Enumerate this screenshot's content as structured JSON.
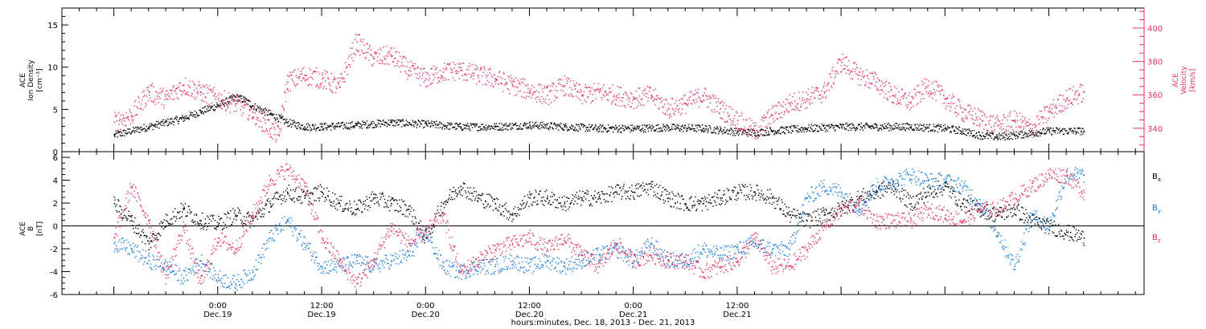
{
  "chart_data": [
    {
      "type": "scatter",
      "panel": "top",
      "ylabel_left": [
        "ACE",
        "Ion Density",
        "[cm⁻³]"
      ],
      "ylabel_right": [
        "ACE",
        "Velocity",
        "[km/s]"
      ],
      "left_ylim": [
        0,
        17
      ],
      "left_yticks": [
        "0",
        "5",
        "10",
        "15"
      ],
      "right_ylim": [
        326,
        412
      ],
      "right_yticks": [
        "340",
        "360",
        "380",
        "400"
      ],
      "series": [
        {
          "name": "Ion Density",
          "axis": "left",
          "color": "#000000",
          "x": [
            -12,
            -8,
            -4,
            -2,
            0,
            2,
            3,
            4,
            6,
            8,
            10,
            12,
            16,
            20,
            24,
            28,
            32,
            36,
            40,
            44,
            48,
            52,
            56,
            58,
            60,
            62,
            64,
            68,
            72,
            76,
            80,
            84,
            86,
            88,
            90,
            92,
            96,
            100
          ],
          "y": [
            2.0,
            3.0,
            4.0,
            4.8,
            5.5,
            6.5,
            6.2,
            5.5,
            4.5,
            3.5,
            3.0,
            3.0,
            3.2,
            3.5,
            3.3,
            3.0,
            3.0,
            3.2,
            3.0,
            2.8,
            2.8,
            2.9,
            2.8,
            2.6,
            2.4,
            2.3,
            2.5,
            2.8,
            3.0,
            3.0,
            3.0,
            2.8,
            2.5,
            2.0,
            1.8,
            2.0,
            2.5,
            2.5
          ]
        },
        {
          "name": "Velocity",
          "axis": "right",
          "color": "#e8325f",
          "x": [
            -12,
            -10,
            -8,
            -6,
            -4,
            -2,
            0,
            2,
            4,
            6,
            7,
            8,
            10,
            12,
            14,
            16,
            18,
            20,
            22,
            24,
            26,
            28,
            30,
            32,
            34,
            36,
            38,
            40,
            42,
            44,
            46,
            48,
            50,
            52,
            54,
            56,
            58,
            60,
            62,
            64,
            66,
            68,
            70,
            72,
            74,
            76,
            78,
            80,
            82,
            84,
            86,
            88,
            90,
            92,
            94,
            96,
            98,
            100
          ],
          "y": [
            344,
            348,
            362,
            358,
            366,
            362,
            358,
            355,
            350,
            340,
            336,
            368,
            372,
            370,
            365,
            392,
            382,
            384,
            375,
            370,
            374,
            375,
            372,
            370,
            366,
            363,
            360,
            366,
            360,
            362,
            360,
            358,
            360,
            352,
            355,
            360,
            352,
            345,
            338,
            348,
            355,
            358,
            362,
            380,
            372,
            368,
            360,
            356,
            366,
            358,
            350,
            346,
            342,
            345,
            340,
            350,
            358,
            362
          ]
        }
      ]
    },
    {
      "type": "scatter",
      "panel": "bottom",
      "ylabel_left": [
        "ACE",
        "B",
        "[nT]"
      ],
      "ylim": [
        -6,
        6.5
      ],
      "yticks": [
        "-6",
        "-4",
        "-2",
        "0",
        "2",
        "4",
        "6"
      ],
      "zero_line": true,
      "series": [
        {
          "name": "Bx",
          "color": "#000000",
          "x": [
            -12,
            -10,
            -8,
            -6,
            -4,
            -2,
            0,
            2,
            4,
            6,
            8,
            10,
            12,
            14,
            16,
            18,
            20,
            22,
            24,
            26,
            28,
            30,
            32,
            34,
            36,
            38,
            40,
            42,
            44,
            46,
            48,
            50,
            52,
            54,
            56,
            58,
            60,
            62,
            64,
            66,
            68,
            70,
            72,
            74,
            76,
            78,
            80,
            82,
            84,
            86,
            88,
            90,
            92,
            94,
            96,
            98,
            100
          ],
          "y": [
            2.0,
            0.5,
            -1.5,
            0.5,
            1.5,
            0.5,
            0.2,
            1.0,
            0.5,
            2.0,
            3.0,
            2.5,
            3.0,
            2.0,
            1.5,
            2.5,
            2.0,
            1.5,
            -1.0,
            2.0,
            3.5,
            2.5,
            2.0,
            1.0,
            2.5,
            2.5,
            2.0,
            2.5,
            2.5,
            3.0,
            3.0,
            3.5,
            2.5,
            2.0,
            2.0,
            2.5,
            3.0,
            3.0,
            2.5,
            1.0,
            0.5,
            1.0,
            1.5,
            2.5,
            3.0,
            3.5,
            2.0,
            3.0,
            3.5,
            2.0,
            1.5,
            1.0,
            1.5,
            0.5,
            0.0,
            -0.5,
            -1.0
          ]
        },
        {
          "name": "By",
          "color": "#1a7fe0",
          "x": [
            -12,
            -10,
            -8,
            -6,
            -4,
            -2,
            0,
            2,
            4,
            6,
            8,
            10,
            12,
            14,
            16,
            18,
            20,
            22,
            24,
            26,
            28,
            30,
            32,
            34,
            36,
            38,
            40,
            42,
            44,
            46,
            48,
            50,
            52,
            54,
            56,
            58,
            60,
            62,
            64,
            66,
            68,
            70,
            72,
            74,
            76,
            78,
            80,
            82,
            84,
            86,
            88,
            90,
            92,
            94,
            96,
            98,
            100
          ],
          "y": [
            -1.5,
            -2.0,
            -3.0,
            -3.5,
            -4.5,
            -3.0,
            -4.5,
            -5.0,
            -4.0,
            -1.0,
            0.5,
            -1.5,
            -3.5,
            -3.5,
            -3.0,
            -3.5,
            -3.0,
            -2.5,
            -0.5,
            -3.5,
            -4.0,
            -3.5,
            -3.5,
            -3.0,
            -3.5,
            -3.0,
            -3.5,
            -3.0,
            -2.5,
            -2.0,
            -3.0,
            -1.5,
            -3.0,
            -3.0,
            -2.0,
            -2.5,
            -2.0,
            -1.5,
            -2.0,
            -2.0,
            2.5,
            3.5,
            3.0,
            1.5,
            3.5,
            4.0,
            4.5,
            4.0,
            4.0,
            3.5,
            2.0,
            -0.5,
            -3.5,
            1.0,
            0.0,
            4.5,
            4.5
          ]
        },
        {
          "name": "Bz",
          "color": "#e8325f",
          "x": [
            -12,
            -10,
            -8,
            -6,
            -4,
            -2,
            0,
            2,
            4,
            6,
            8,
            10,
            12,
            14,
            16,
            18,
            20,
            22,
            24,
            26,
            28,
            30,
            32,
            34,
            36,
            38,
            40,
            42,
            44,
            46,
            48,
            50,
            52,
            54,
            56,
            58,
            60,
            62,
            64,
            66,
            68,
            70,
            72,
            74,
            76,
            78,
            80,
            82,
            84,
            86,
            88,
            90,
            92,
            94,
            96,
            98,
            100
          ],
          "y": [
            -1.0,
            3.5,
            0.5,
            -4.5,
            0.0,
            -5.0,
            -1.0,
            -2.0,
            1.0,
            4.0,
            5.0,
            3.5,
            -1.0,
            -3.0,
            -5.0,
            -3.0,
            0.0,
            -1.5,
            -0.5,
            1.0,
            -4.0,
            -3.0,
            -2.0,
            -1.5,
            -1.0,
            -2.0,
            -1.0,
            -2.5,
            -3.5,
            -1.5,
            -3.0,
            -2.5,
            -3.0,
            -3.0,
            -4.0,
            -3.5,
            -3.0,
            -1.0,
            -3.5,
            -3.5,
            -2.0,
            0.0,
            1.5,
            2.0,
            0.5,
            0.5,
            0.5,
            1.5,
            1.0,
            0.5,
            1.5,
            1.5,
            2.5,
            3.5,
            4.5,
            4.5,
            3.0
          ]
        }
      ],
      "legend": [
        {
          "label": "B",
          "sub": "x",
          "color": "#000000"
        },
        {
          "label": "B",
          "sub": "y",
          "color": "#1a7fe0"
        },
        {
          "label": "B",
          "sub": "z",
          "color": "#e8325f"
        }
      ]
    }
  ],
  "x_axis": {
    "xlim": [
      -18,
      107
    ],
    "ticks": [
      {
        "x": 0,
        "time": "0:00",
        "date": "Dec.19"
      },
      {
        "x": 12,
        "time": "12:00",
        "date": "Dec.19"
      },
      {
        "x": 24,
        "time": "0:00",
        "date": "Dec.20"
      },
      {
        "x": 36,
        "time": "12:00",
        "date": "Dec.20"
      },
      {
        "x": 48,
        "time": "0:00",
        "date": "Dec.21"
      },
      {
        "x": 60,
        "time": "12:00",
        "date": "Dec.21"
      }
    ],
    "xlabel": "hours:minutes, Dec. 18, 2013 - Dec. 21, 2013"
  }
}
